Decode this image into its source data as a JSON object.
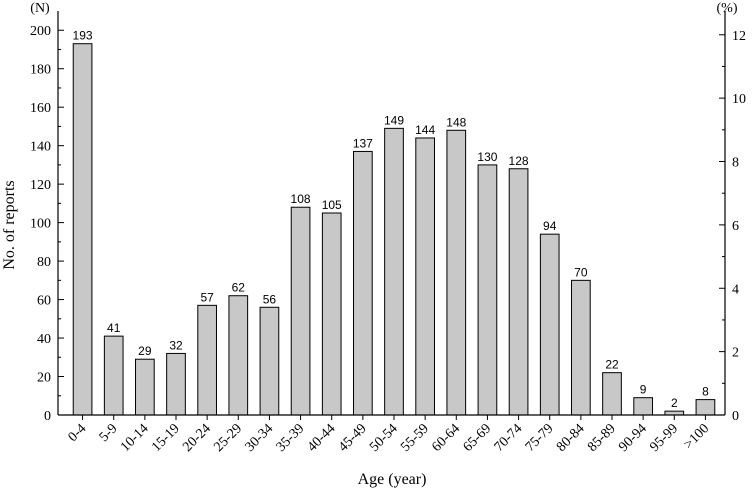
{
  "chart_data": {
    "type": "bar",
    "xlabel": "Age (year)",
    "ylabel": "No. of reports",
    "left_unit": "(N)",
    "right_unit": "(%)",
    "categories": [
      "0-4",
      "5-9",
      "10-14",
      "15-19",
      "20-24",
      "25-29",
      "30-34",
      "35-39",
      "40-44",
      "45-49",
      "50-54",
      "55-59",
      "60-64",
      "65-69",
      "70-74",
      "75-79",
      "80-84",
      "85-89",
      "90-94",
      "95-99",
      ">100"
    ],
    "values": [
      193,
      41,
      29,
      32,
      57,
      62,
      56,
      108,
      105,
      137,
      149,
      144,
      148,
      130,
      128,
      94,
      70,
      22,
      9,
      2,
      8
    ],
    "ylim": [
      0,
      210
    ],
    "yticks": [
      0,
      20,
      40,
      60,
      80,
      100,
      120,
      140,
      160,
      180,
      200
    ],
    "y2lim": [
      0,
      12.75
    ],
    "y2ticks": [
      0,
      2,
      4,
      6,
      8,
      10,
      12
    ],
    "bar_color": "#c8c8c8",
    "grid": false
  }
}
